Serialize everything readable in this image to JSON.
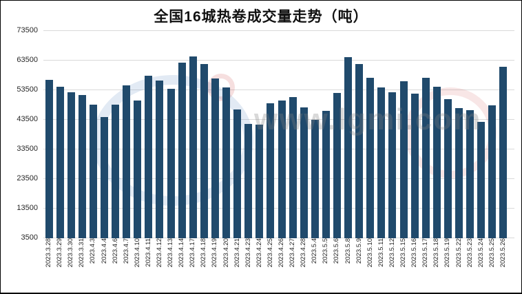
{
  "title": "全国16城热卷成交量走势（吨）",
  "watermark_text": "www.lgmi.com",
  "chart_data": {
    "type": "bar",
    "title": "全国16城热卷成交量走势（吨）",
    "xlabel": "",
    "ylabel": "",
    "grid": true,
    "legend": "none",
    "ylim": [
      3500,
      73500
    ],
    "y_ticks": [
      73500,
      63500,
      53500,
      43500,
      33500,
      23500,
      13500,
      3500
    ],
    "bar_color": "#204a6c",
    "gridline_color": "#d9d9d9",
    "categories": [
      "2023.3.28",
      "2023.3.29",
      "2023.3.30",
      "2023.3.31",
      "2023.4.3",
      "2023.4.4",
      "2023.4.6",
      "2023.4.7",
      "2023.4.10",
      "2023.4.11",
      "2023.4.12",
      "2023.4.13",
      "2023.4.14",
      "2023.4.17",
      "2023.4.18",
      "2023.4.19",
      "2023.4.20",
      "2023.4.21",
      "2023.4.23",
      "2023.4.24",
      "2023.4.25",
      "2023.4.26",
      "2023.4.27",
      "2023.4.28",
      "2023.5.4",
      "2023.5.5",
      "2023.5.6",
      "2023.5.8",
      "2023.5.9",
      "2023.5.10",
      "2023.5.11",
      "2023.5.12",
      "2023.5.15",
      "2023.5.16",
      "2023.5.17",
      "2023.5.18",
      "2023.5.19",
      "2023.5.22",
      "2023.5.23",
      "2023.5.24",
      "2023.5.25",
      "2023.5.26"
    ],
    "values": [
      57000,
      54700,
      52800,
      51800,
      48600,
      44500,
      48600,
      55200,
      50000,
      58400,
      56700,
      54000,
      62700,
      64900,
      62400,
      57400,
      54400,
      47000,
      42200,
      41800,
      49100,
      50000,
      51200,
      47800,
      43400,
      46500,
      52600,
      64600,
      62400,
      57700,
      54500,
      52700,
      56500,
      52400,
      57600,
      54600,
      50400,
      47400,
      46800,
      42800,
      48400,
      61500
    ]
  }
}
